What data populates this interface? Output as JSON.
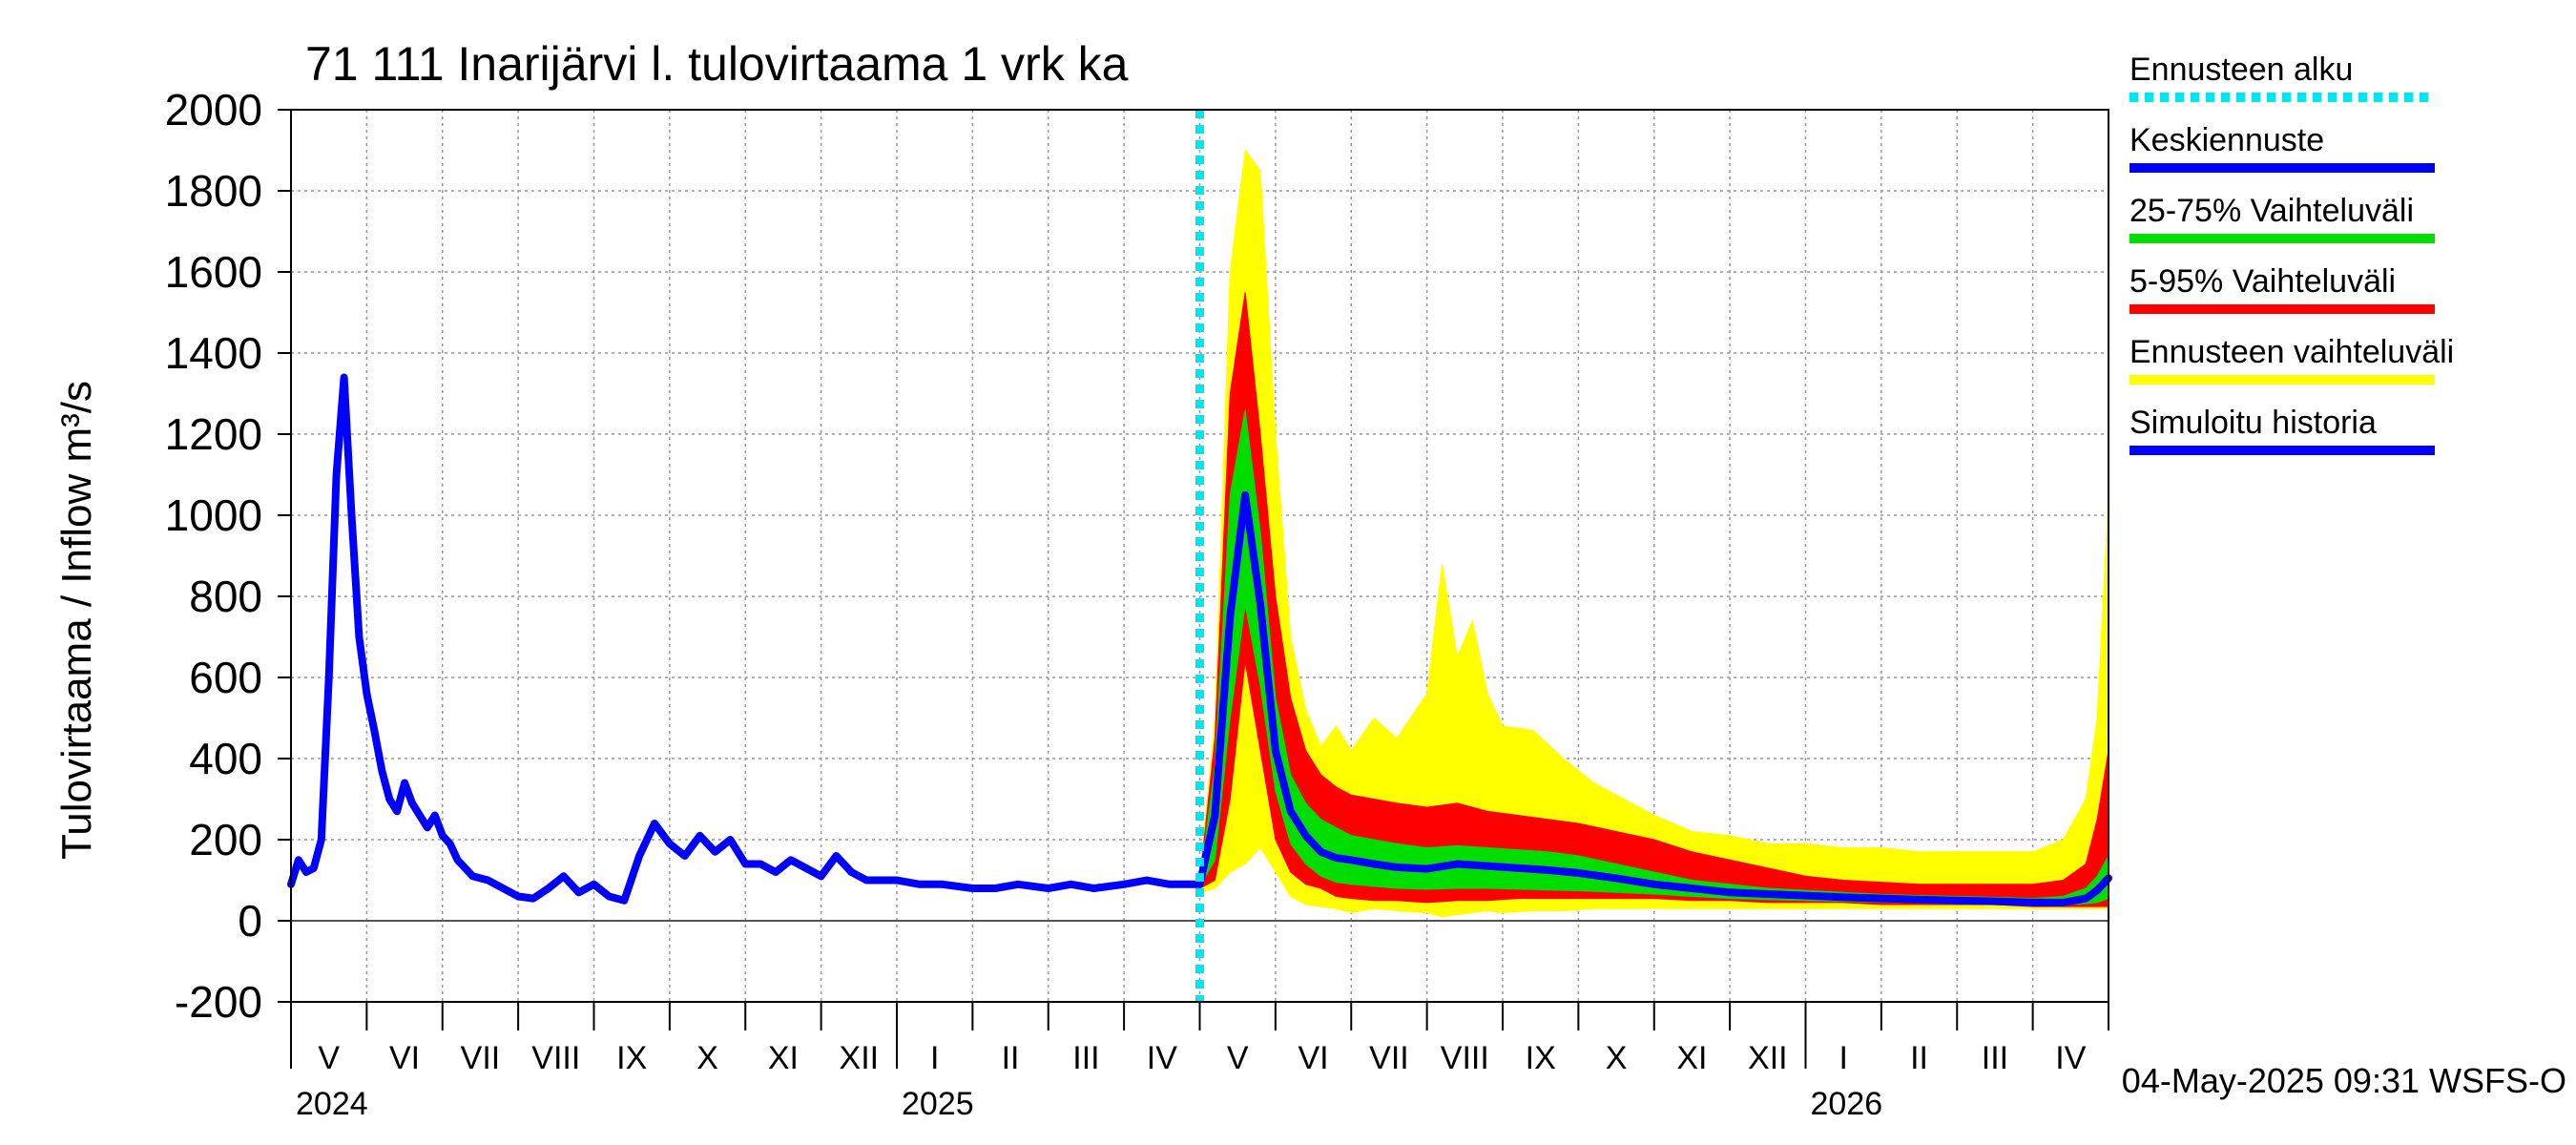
{
  "chart_data": {
    "type": "line",
    "title": "71 111 Inarijärvi l. tulovirtaama 1 vrk ka",
    "ylabel": "Tulovirtaama / Inflow    m³/s",
    "xlabel": "",
    "ylim": [
      -200,
      2000
    ],
    "y_ticks": [
      -200,
      0,
      200,
      400,
      600,
      800,
      1000,
      1200,
      1400,
      1600,
      1800,
      2000
    ],
    "x_domain_months": [
      0,
      24
    ],
    "x_unit": "months since 2024-04-14",
    "month_labels": [
      "V",
      "VI",
      "VII",
      "VIII",
      "IX",
      "X",
      "XI",
      "XII",
      "I",
      "II",
      "III",
      "IV",
      "V",
      "VI",
      "VII",
      "VIII",
      "IX",
      "X",
      "XI",
      "XII",
      "I",
      "II",
      "III",
      "IV"
    ],
    "year_labels": [
      {
        "label": "2024",
        "month": 0
      },
      {
        "label": "2025",
        "month": 8
      },
      {
        "label": "2026",
        "month": 20
      }
    ],
    "forecast_start_month": 12.0,
    "footer": "04-May-2025 09:31 WSFS-O",
    "legend": [
      {
        "label": "Ennusteen alku",
        "color": "#00e5ee",
        "style": "dotted"
      },
      {
        "label": "Keskiennuste",
        "color": "#0000ff",
        "style": "solid"
      },
      {
        "label": "25-75% Vaihteluväli",
        "color": "#00dd00",
        "style": "solid"
      },
      {
        "label": "5-95% Vaihteluväli",
        "color": "#ff0000",
        "style": "solid"
      },
      {
        "label": "Ennusteen vaihteluväli",
        "color": "#ffff00",
        "style": "solid"
      },
      {
        "label": "Simuloitu historia",
        "color": "#0000ff",
        "style": "solid"
      }
    ],
    "series": [
      {
        "name": "Simuloitu historia",
        "color": "#0000ff",
        "x": [
          0,
          0.1,
          0.2,
          0.3,
          0.4,
          0.5,
          0.6,
          0.7,
          0.8,
          0.9,
          1.0,
          1.1,
          1.2,
          1.3,
          1.4,
          1.5,
          1.6,
          1.7,
          1.8,
          1.9,
          2.0,
          2.1,
          2.2,
          2.4,
          2.6,
          2.8,
          3.0,
          3.2,
          3.4,
          3.6,
          3.8,
          4.0,
          4.2,
          4.4,
          4.6,
          4.8,
          5.0,
          5.2,
          5.4,
          5.6,
          5.8,
          6.0,
          6.2,
          6.4,
          6.6,
          6.8,
          7.0,
          7.2,
          7.4,
          7.6,
          7.8,
          8.0,
          8.3,
          8.6,
          9.0,
          9.3,
          9.6,
          10.0,
          10.3,
          10.6,
          11.0,
          11.3,
          11.6,
          12.0
        ],
        "values": [
          90,
          150,
          120,
          130,
          200,
          600,
          1100,
          1340,
          1000,
          700,
          560,
          470,
          370,
          300,
          270,
          340,
          290,
          260,
          230,
          260,
          210,
          190,
          150,
          110,
          100,
          80,
          60,
          55,
          80,
          110,
          70,
          90,
          60,
          50,
          160,
          240,
          190,
          160,
          210,
          170,
          200,
          140,
          140,
          120,
          150,
          130,
          110,
          160,
          120,
          100,
          100,
          100,
          90,
          90,
          80,
          80,
          90,
          80,
          90,
          80,
          90,
          100,
          90,
          90
        ]
      },
      {
        "name": "Ennusteen vaihteluväli",
        "color": "#ffff00",
        "x": [
          12.0,
          12.2,
          12.4,
          12.6,
          12.8,
          13.0,
          13.2,
          13.4,
          13.6,
          13.8,
          14.0,
          14.3,
          14.6,
          15.0,
          15.2,
          15.4,
          15.6,
          15.8,
          16.0,
          16.4,
          16.8,
          17.2,
          17.6,
          18.0,
          18.5,
          19.0,
          19.5,
          20.0,
          20.5,
          21.0,
          21.5,
          22.0,
          22.5,
          23.0,
          23.4,
          23.7,
          23.85,
          24.0
        ],
        "upper": [
          110,
          500,
          1600,
          1900,
          1850,
          1200,
          700,
          520,
          430,
          480,
          420,
          500,
          450,
          560,
          880,
          650,
          740,
          560,
          480,
          470,
          400,
          340,
          300,
          260,
          220,
          210,
          190,
          190,
          180,
          180,
          170,
          170,
          170,
          170,
          200,
          300,
          500,
          1050
        ],
        "lower": [
          70,
          80,
          120,
          140,
          180,
          120,
          60,
          40,
          35,
          30,
          20,
          30,
          25,
          20,
          10,
          15,
          20,
          25,
          20,
          25,
          25,
          30,
          30,
          30,
          30,
          30,
          30,
          30,
          30,
          30,
          30,
          30,
          30,
          30,
          30,
          30,
          30,
          30
        ]
      },
      {
        "name": "5-95% Vaihteluväli",
        "color": "#ff0000",
        "x": [
          12.0,
          12.2,
          12.4,
          12.6,
          12.8,
          13.0,
          13.2,
          13.4,
          13.6,
          13.8,
          14.0,
          14.3,
          14.6,
          15.0,
          15.4,
          15.8,
          16.2,
          16.6,
          17.0,
          17.5,
          18.0,
          18.5,
          19.0,
          19.5,
          20.0,
          20.5,
          21.0,
          21.5,
          22.0,
          22.5,
          23.0,
          23.4,
          23.7,
          23.85,
          24.0
        ],
        "upper": [
          100,
          450,
          1300,
          1550,
          1200,
          800,
          550,
          420,
          360,
          330,
          310,
          300,
          290,
          280,
          290,
          270,
          260,
          250,
          240,
          220,
          200,
          170,
          150,
          130,
          110,
          100,
          95,
          90,
          90,
          90,
          90,
          100,
          140,
          250,
          420
        ],
        "lower": [
          80,
          100,
          300,
          640,
          420,
          200,
          120,
          90,
          80,
          60,
          55,
          50,
          50,
          45,
          50,
          50,
          55,
          55,
          55,
          55,
          55,
          50,
          50,
          45,
          45,
          45,
          40,
          40,
          40,
          40,
          35,
          35,
          35,
          35,
          35
        ]
      },
      {
        "name": "25-75% Vaihteluväli",
        "color": "#00dd00",
        "x": [
          12.0,
          12.2,
          12.4,
          12.6,
          12.8,
          13.0,
          13.2,
          13.4,
          13.6,
          13.8,
          14.0,
          14.3,
          14.6,
          15.0,
          15.4,
          15.8,
          16.2,
          16.6,
          17.0,
          17.5,
          18.0,
          18.5,
          19.0,
          19.5,
          20.0,
          20.5,
          21.0,
          21.5,
          22.0,
          22.5,
          23.0,
          23.4,
          23.7,
          23.85,
          24.0
        ],
        "upper": [
          95,
          380,
          1050,
          1260,
          960,
          550,
          360,
          290,
          250,
          230,
          210,
          200,
          190,
          180,
          185,
          180,
          175,
          170,
          160,
          140,
          120,
          100,
          90,
          80,
          75,
          70,
          65,
          62,
          60,
          58,
          55,
          60,
          80,
          110,
          160
        ],
        "lower": [
          85,
          150,
          500,
          780,
          580,
          320,
          190,
          140,
          110,
          95,
          90,
          85,
          80,
          78,
          80,
          80,
          78,
          76,
          74,
          70,
          66,
          60,
          55,
          52,
          50,
          48,
          46,
          44,
          42,
          42,
          40,
          40,
          42,
          45,
          55
        ]
      },
      {
        "name": "Keskiennuste",
        "color": "#0000ff",
        "x": [
          12.0,
          12.2,
          12.4,
          12.6,
          12.8,
          13.0,
          13.2,
          13.4,
          13.6,
          13.8,
          14.0,
          14.3,
          14.6,
          15.0,
          15.4,
          15.8,
          16.2,
          16.6,
          17.0,
          17.5,
          18.0,
          18.5,
          19.0,
          19.5,
          20.0,
          20.5,
          21.0,
          21.5,
          22.0,
          22.5,
          23.0,
          23.4,
          23.7,
          23.85,
          24.0
        ],
        "values": [
          90,
          260,
          750,
          1050,
          780,
          420,
          270,
          210,
          170,
          155,
          150,
          140,
          132,
          128,
          140,
          135,
          130,
          125,
          118,
          105,
          90,
          80,
          70,
          66,
          62,
          58,
          55,
          52,
          50,
          48,
          45,
          45,
          55,
          75,
          105
        ]
      }
    ]
  }
}
